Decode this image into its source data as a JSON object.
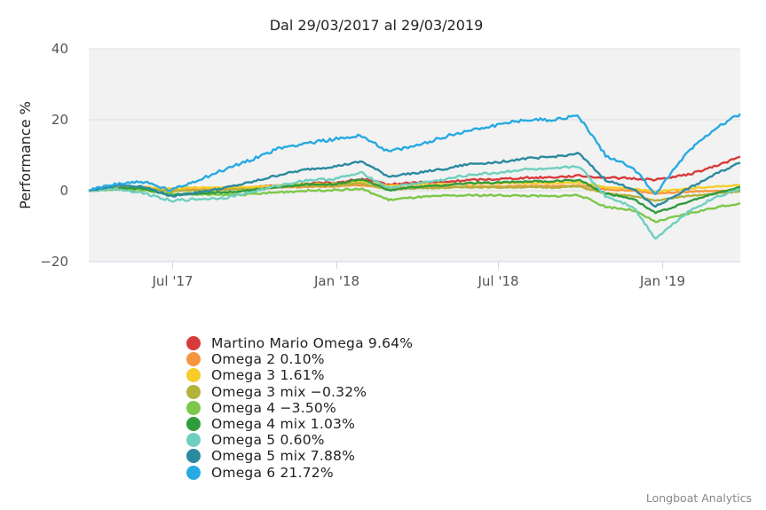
{
  "chart_data": {
    "type": "line",
    "title": "Dal 29/03/2017 al 29/03/2019",
    "xlabel": "",
    "ylabel": "Performance %",
    "xlim": [
      "2017-03-29",
      "2019-03-29"
    ],
    "ylim": [
      -20,
      40
    ],
    "yticks": [
      40,
      20,
      0,
      -20
    ],
    "ytick_labels": [
      "40",
      "20",
      "0",
      "−20"
    ],
    "xticks": [
      {
        "date": "2017-07-01",
        "label": "Jul '17"
      },
      {
        "date": "2018-01-01",
        "label": "Jan '18"
      },
      {
        "date": "2018-07-01",
        "label": "Jul '18"
      },
      {
        "date": "2019-01-01",
        "label": "Jan '19"
      }
    ],
    "grid": true,
    "legend_position": "bottom-center",
    "x": [
      "2017-03-29",
      "2017-04-29",
      "2017-05-29",
      "2017-06-29",
      "2017-07-29",
      "2017-08-29",
      "2017-09-29",
      "2017-10-29",
      "2017-11-29",
      "2017-12-29",
      "2018-01-29",
      "2018-02-28",
      "2018-03-29",
      "2018-04-29",
      "2018-05-29",
      "2018-06-29",
      "2018-07-29",
      "2018-08-29",
      "2018-09-29",
      "2018-10-29",
      "2018-11-29",
      "2018-12-24",
      "2019-01-29",
      "2019-02-28",
      "2019-03-29"
    ],
    "series": [
      {
        "name": "Martino Mario Omega",
        "label": "Martino Mario Omega 9.64%",
        "color": "#d83b3b",
        "values": [
          0,
          0.8,
          0.9,
          0.2,
          0.6,
          0.6,
          0.9,
          1.5,
          2.0,
          2.2,
          3.3,
          1.7,
          2.3,
          2.4,
          3.0,
          3.3,
          3.6,
          3.8,
          4.2,
          3.7,
          3.4,
          3.1,
          4.5,
          6.8,
          9.6
        ]
      },
      {
        "name": "Omega 2",
        "label": "Omega 2 0.10%",
        "color": "#f7963f",
        "values": [
          0,
          0.5,
          0.7,
          0.3,
          0.5,
          0.5,
          0.6,
          0.9,
          1.1,
          1.2,
          1.6,
          0.7,
          1.0,
          1.0,
          1.2,
          1.2,
          1.3,
          1.3,
          1.5,
          0.4,
          0.0,
          -0.8,
          -0.3,
          0.0,
          0.1
        ]
      },
      {
        "name": "Omega 3",
        "label": "Omega 3 1.61%",
        "color": "#f6cd2a",
        "values": [
          0,
          0.9,
          1.0,
          0.6,
          0.9,
          0.9,
          1.1,
          1.5,
          1.8,
          2.0,
          2.6,
          1.4,
          1.7,
          1.8,
          2.0,
          2.0,
          2.1,
          2.1,
          2.4,
          1.0,
          0.6,
          -0.2,
          0.6,
          1.1,
          1.6
        ]
      },
      {
        "name": "Omega 3 mix",
        "label": "Omega 3 mix −0.32%",
        "color": "#b2b23c",
        "values": [
          0,
          0.6,
          0.6,
          -0.2,
          0.1,
          0.2,
          0.5,
          1.0,
          1.3,
          1.5,
          2.1,
          0.3,
          0.7,
          0.8,
          1.0,
          0.9,
          1.0,
          0.9,
          1.2,
          -0.8,
          -1.5,
          -2.8,
          -1.5,
          -0.8,
          -0.3
        ]
      },
      {
        "name": "Omega 4",
        "label": "Omega 4 −3.50%",
        "color": "#7cc849",
        "values": [
          0,
          0.3,
          0.2,
          -0.9,
          -1.1,
          -1.2,
          -1.0,
          -0.4,
          0.0,
          0.2,
          0.5,
          -2.6,
          -1.9,
          -1.5,
          -1.3,
          -1.3,
          -1.4,
          -1.6,
          -1.2,
          -4.5,
          -5.5,
          -8.8,
          -6.5,
          -4.8,
          -3.5
        ]
      },
      {
        "name": "Omega 4 mix",
        "label": "Omega 4 mix 1.03%",
        "color": "#2f9c3c",
        "values": [
          0,
          0.8,
          0.6,
          -1.4,
          -0.7,
          -0.5,
          0.2,
          1.0,
          1.8,
          1.8,
          3.2,
          0.2,
          1.0,
          1.5,
          2.1,
          2.3,
          2.6,
          2.6,
          3.1,
          -0.8,
          -2.2,
          -6.3,
          -3.2,
          -0.8,
          1.0
        ]
      },
      {
        "name": "Omega 5",
        "label": "Omega 5 0.60%",
        "color": "#6fcfbf",
        "values": [
          0,
          0.5,
          -0.6,
          -2.8,
          -2.4,
          -2.0,
          -0.3,
          1.5,
          3.0,
          3.3,
          5.0,
          0.8,
          2.0,
          3.0,
          4.5,
          5.0,
          6.0,
          6.0,
          7.0,
          -1.5,
          -4.5,
          -13.5,
          -6.0,
          -2.0,
          0.6
        ]
      },
      {
        "name": "Omega 5 mix",
        "label": "Omega 5 mix 7.88%",
        "color": "#2a8aa0",
        "values": [
          0,
          1.5,
          1.2,
          -1.5,
          -0.5,
          0.8,
          2.5,
          4.5,
          6.0,
          6.8,
          8.2,
          4.0,
          5.0,
          6.0,
          7.5,
          8.0,
          9.0,
          9.5,
          10.5,
          3.0,
          0.5,
          -4.5,
          0.5,
          4.5,
          7.9
        ]
      },
      {
        "name": "Omega 6",
        "label": "Omega 6 21.72%",
        "color": "#27aae1",
        "values": [
          0,
          2.0,
          2.5,
          0.0,
          3.0,
          6.0,
          9.0,
          12.0,
          13.5,
          14.5,
          15.5,
          11.0,
          12.5,
          15.0,
          17.0,
          18.5,
          20.0,
          20.0,
          21.0,
          10.0,
          6.5,
          -1.0,
          11.0,
          17.5,
          21.7
        ]
      }
    ]
  },
  "credits": "Longboat Analytics"
}
